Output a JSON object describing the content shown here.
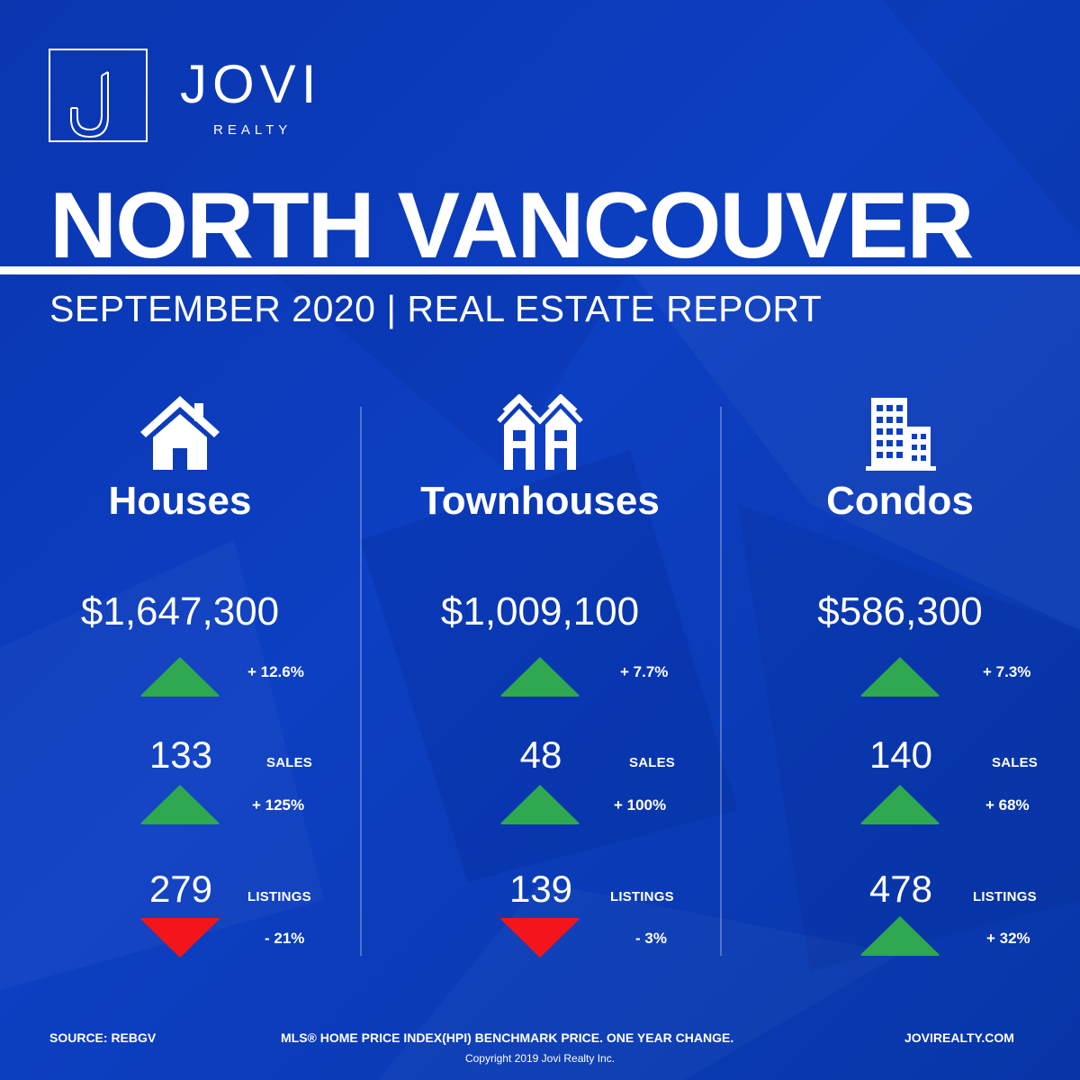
{
  "brand": {
    "name": "JOVI",
    "sub": "REALTY"
  },
  "title": "NORTH VANCOUVER",
  "subtitle": "SEPTEMBER 2020 | REAL ESTATE REPORT",
  "colors": {
    "background": "#0c3fc2",
    "up": "#2fa84f",
    "down": "#f4151b",
    "text": "#ffffff"
  },
  "columns": [
    {
      "title": "Houses",
      "icon": "house-icon",
      "price": "$1,647,300",
      "price_change": "+ 12.6%",
      "price_dir": "up",
      "sales": "133",
      "sales_label": "SALES",
      "sales_change": "+ 125%",
      "sales_dir": "up",
      "listings": "279",
      "listings_label": "LISTINGS",
      "listings_change": "- 21%",
      "listings_dir": "down"
    },
    {
      "title": "Townhouses",
      "icon": "townhouse-icon",
      "price": "$1,009,100",
      "price_change": "+ 7.7%",
      "price_dir": "up",
      "sales": "48",
      "sales_label": "SALES",
      "sales_change": "+ 100%",
      "sales_dir": "up",
      "listings": "139",
      "listings_label": "LISTINGS",
      "listings_change": "- 3%",
      "listings_dir": "down"
    },
    {
      "title": "Condos",
      "icon": "condo-building-icon",
      "price": "$586,300",
      "price_change": "+ 7.3%",
      "price_dir": "up",
      "sales": "140",
      "sales_label": "SALES",
      "sales_change": "+ 68%",
      "sales_dir": "up",
      "listings": "478",
      "listings_label": "LISTINGS",
      "listings_change": "+ 32%",
      "listings_dir": "up"
    }
  ],
  "footer": {
    "source": "SOURCE:  REBGV",
    "note": "MLS® HOME PRICE INDEX(HPI) BENCHMARK PRICE. ONE YEAR CHANGE.",
    "website": "JOVIREALTY.COM",
    "copyright": "Copyright 2019 Jovi Realty Inc."
  }
}
